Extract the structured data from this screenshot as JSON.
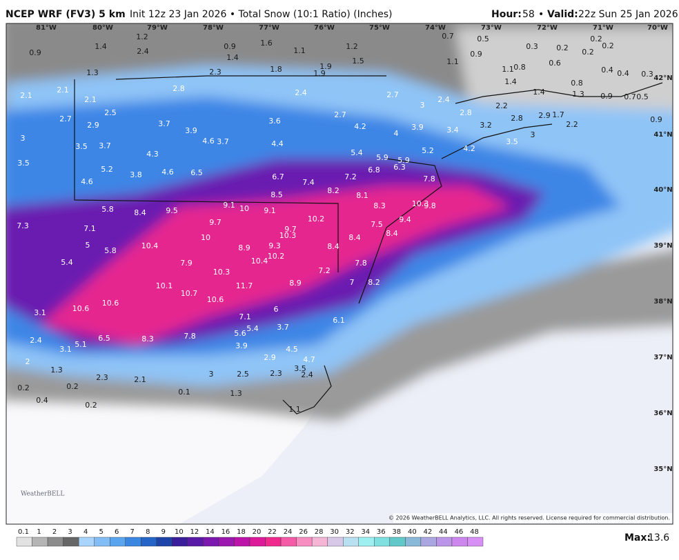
{
  "header": {
    "model": "NCEP WRF (FV3) 5 km",
    "description": "Init 12z 23 Jan 2026 • Total Snow (10:1 Ratio) (Inches)",
    "hour_label": "Hour:",
    "hour": "58",
    "separator": "•",
    "valid_label": "Valid:",
    "valid": "22z Sun 25 Jan 2026"
  },
  "map": {
    "longitudes": [
      "81°W",
      "80°W",
      "79°W",
      "78°W",
      "77°W",
      "76°W",
      "75°W",
      "74°W",
      "73°W",
      "72°W",
      "71°W",
      "70°W"
    ],
    "latitudes": [
      "42°N",
      "41°N",
      "40°N",
      "39°N",
      "38°N",
      "37°N",
      "36°N",
      "35°N"
    ],
    "snow_labels": [
      1.4,
      1.2,
      2.4,
      0.9,
      1.3,
      0.9,
      1.4,
      1.6,
      1.1,
      1.8,
      2.3,
      1.9,
      1.9,
      1.2,
      1.5,
      0.7,
      0.5,
      0.9,
      1.1,
      0.3,
      0.2,
      0.6,
      0.2,
      0.2,
      0.2,
      0.4,
      0.4,
      0.3,
      1.1,
      0.8,
      1.4,
      0.8,
      1.4,
      1.3,
      0.9,
      0.7,
      0.5,
      2.1,
      2.1,
      2.1,
      2.8,
      2.4,
      2.7,
      3.0,
      2.4,
      2.8,
      2.2,
      2.8,
      3.2,
      2.9,
      1.7,
      2.2,
      0.9,
      2.7,
      2.5,
      2.9,
      3.7,
      3.9,
      3.6,
      2.7,
      4.2,
      3.9,
      3.4,
      4.0,
      3.0,
      3.0,
      3.5,
      3.7,
      4.6,
      3.7,
      4.4,
      3.5,
      4.2,
      5.2,
      5.4,
      4.3,
      5.9,
      5.9,
      6.3,
      3.5,
      5.2,
      4.6,
      6.5,
      6.8,
      3.8,
      6.7,
      4.6,
      7.4,
      7.2,
      7.8,
      8.2,
      8.5,
      8.1,
      10.3,
      9.8,
      5.8,
      8.4,
      9.5,
      9.1,
      10.0,
      9.1,
      8.3,
      7.3,
      9.7,
      10.2,
      9.4,
      7.1,
      10.0,
      9.7,
      10.3,
      7.5,
      8.4,
      5.0,
      10.4,
      8.9,
      9.3,
      8.4,
      8.4,
      5.8,
      10.2,
      5.4,
      7.9,
      10.4,
      7.8,
      10.3,
      7.2,
      8.9,
      7.0,
      8.2,
      10.1,
      11.7,
      10.7,
      10.6,
      10.6,
      10.6,
      6.0,
      3.1,
      7.1,
      6.1,
      5.4,
      3.7,
      5.6,
      2.4,
      6.5,
      8.3,
      7.8,
      5.1,
      3.9,
      4.5,
      3.1,
      2.9,
      4.7,
      2.0,
      3.5,
      1.3,
      2.3,
      2.1,
      3.0,
      2.5,
      2.3,
      2.4,
      0.2,
      0.2,
      0.1,
      1.3,
      0.4,
      0.2,
      1.1
    ],
    "copyright": "© 2026 WeatherBELL Analytics, LLC. All rights reserved. License required for commercial distribution.",
    "logo": "WeatherBELL"
  },
  "legend": {
    "levels": [
      0.1,
      1,
      2,
      3,
      4,
      5,
      6,
      7,
      8,
      9,
      10,
      12,
      14,
      16,
      18,
      20,
      22,
      24,
      26,
      28,
      30,
      32,
      34,
      36,
      38,
      40,
      42,
      44,
      46,
      48
    ],
    "colors": [
      "#e2e2e2",
      "#b5b5b5",
      "#8c8c8c",
      "#666666",
      "#a9d4fb",
      "#82bdf5",
      "#5aa5ef",
      "#3a86e0",
      "#2565c8",
      "#1d44a8",
      "#3a1d9a",
      "#5a1aa8",
      "#7b18b0",
      "#9c16b0",
      "#bc14a8",
      "#dd1a99",
      "#f02a8c",
      "#f55aa6",
      "#f78cc0",
      "#f5b5d5",
      "#d8c8e8",
      "#b8e0f0",
      "#9ef0f0",
      "#80e0e0",
      "#60c8c8",
      "#8ab8d8",
      "#a9a6e0",
      "#bb95e8",
      "#cc86ee",
      "#d88ff4"
    ],
    "max_label": "Max:",
    "max": 13.6
  }
}
